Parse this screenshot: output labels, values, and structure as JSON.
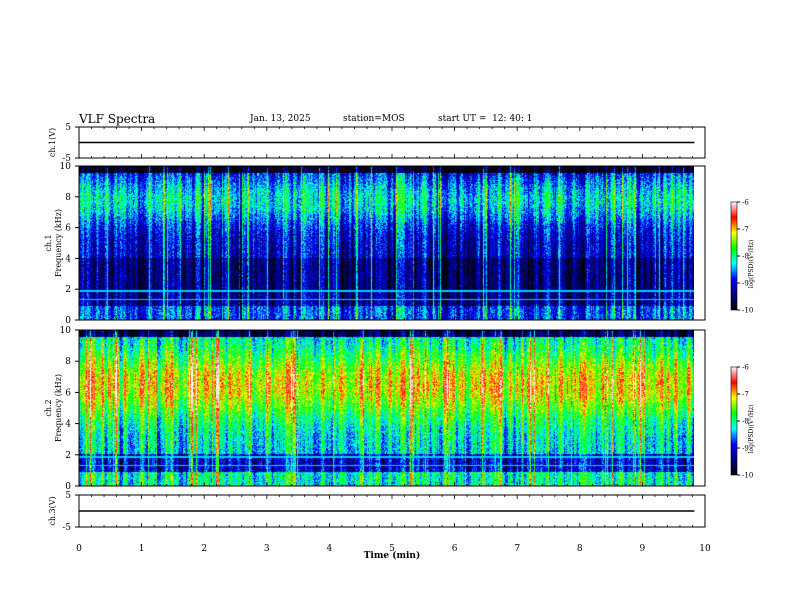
{
  "header": {
    "title": "VLF Spectra",
    "date": "Jan. 13, 2025",
    "station": "station=MOS",
    "start_ut": "start UT =  12: 40: 1"
  },
  "chart_data": [
    {
      "type": "line",
      "ylabel": "ch.1(V)",
      "ylim": [
        -5,
        5
      ],
      "yticks": [
        5,
        -5
      ],
      "x_range": [
        0,
        9.83
      ],
      "values": "flat near 0 V",
      "y_value": 0
    },
    {
      "type": "heatmap",
      "ylabel": "Frequency (kHz)",
      "ylabel_prefix": "ch.1",
      "ylim": [
        0,
        10
      ],
      "yticks": [
        0,
        2,
        4,
        6,
        8,
        10
      ],
      "x_range": [
        0,
        9.83
      ],
      "colorbar": {
        "label": "log(PSD)(V²/Hz)",
        "range": [
          -10,
          -6
        ],
        "ticks": [
          "-6",
          "-7",
          "-8",
          "-9",
          "-10"
        ]
      }
    },
    {
      "type": "heatmap",
      "ylabel": "Frequency (kHz)",
      "ylabel_prefix": "ch.2",
      "ylim": [
        0,
        10
      ],
      "yticks": [
        0,
        2,
        4,
        6,
        8,
        10
      ],
      "x_range": [
        0,
        9.83
      ],
      "colorbar": {
        "label": "log(PSD)(V²/Hz)",
        "range": [
          -10,
          -6
        ],
        "ticks": [
          "-6",
          "-7",
          "-8",
          "-9",
          "-10"
        ]
      }
    },
    {
      "type": "line",
      "ylabel": "ch.3(V)",
      "ylim": [
        -5,
        5
      ],
      "yticks": [
        5,
        -5
      ],
      "x_range": [
        0,
        9.83
      ],
      "values": "flat near 0 V",
      "y_value": 0
    }
  ],
  "xaxis": {
    "label": "Time (min)",
    "ticks": [
      "0",
      "1",
      "2",
      "3",
      "4",
      "5",
      "6",
      "7",
      "8",
      "9",
      "10"
    ],
    "range": [
      0,
      10
    ]
  },
  "colors": {
    "background": "#ffffff",
    "colormap": [
      "#000000",
      "#000080",
      "#0000ff",
      "#00ffff",
      "#00ff00",
      "#ffff00",
      "#ff0000",
      "#ffffff"
    ]
  }
}
